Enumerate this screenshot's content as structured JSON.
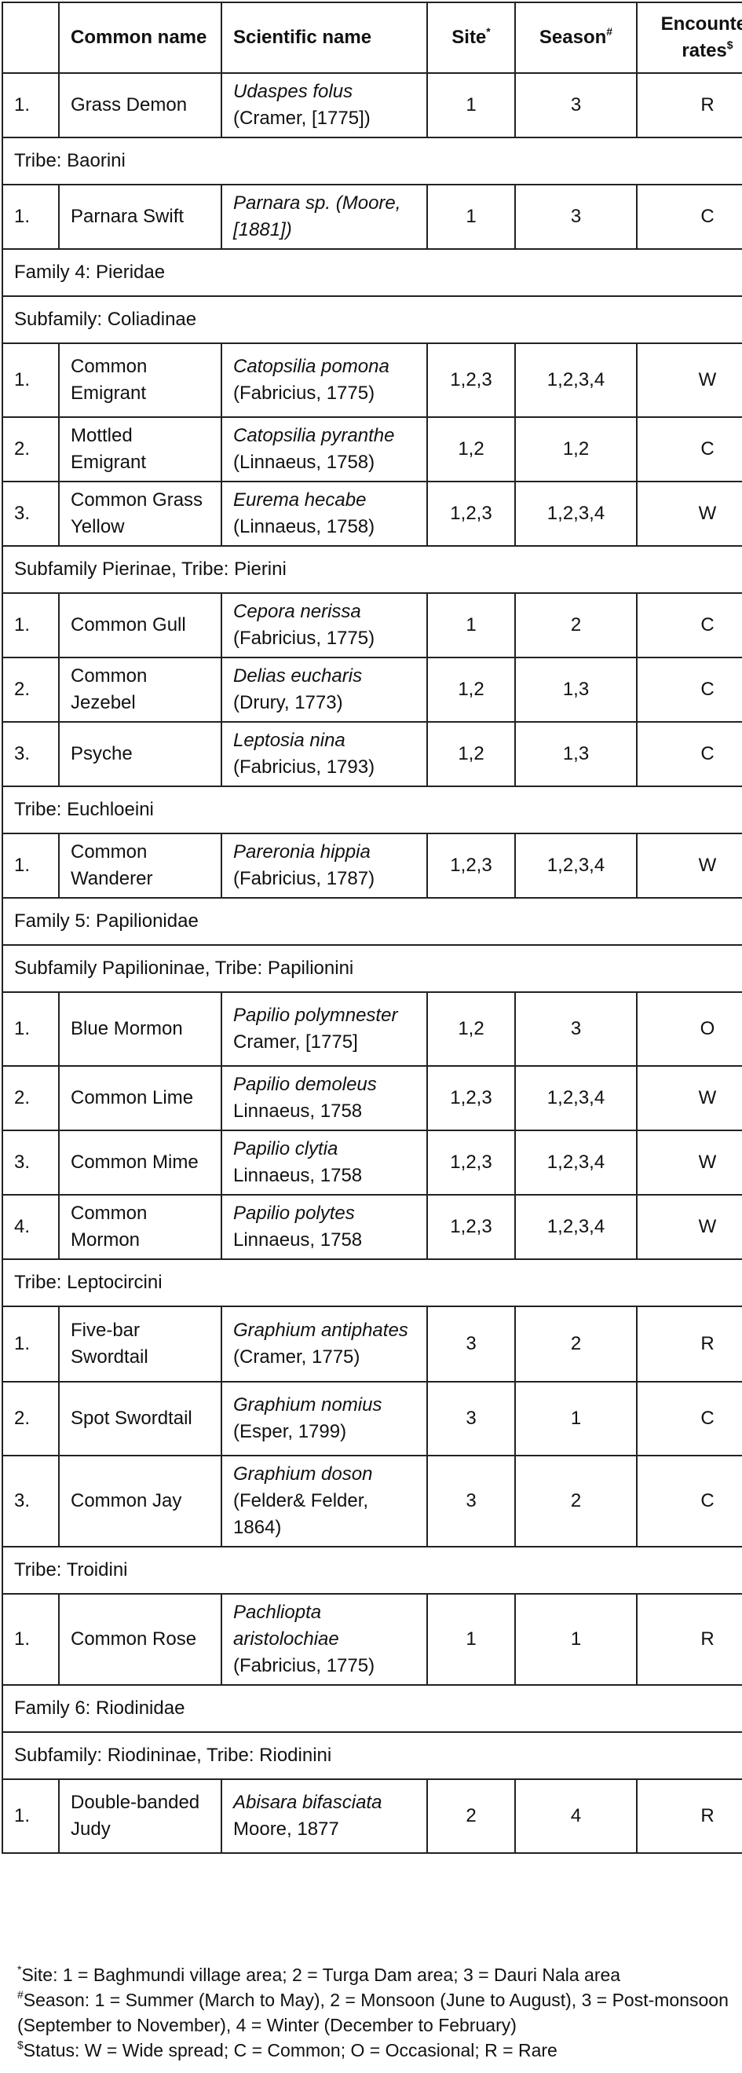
{
  "header": {
    "num": "",
    "common_name": "Common name",
    "scientific_name": "Scientific name",
    "site": "Site",
    "site_mark": "*",
    "season": "Season",
    "season_mark": "#",
    "encounter_rates": "Encounter rates",
    "encounter_mark": "$"
  },
  "rows": [
    {
      "type": "species",
      "num": "1.",
      "common": "Grass Demon",
      "sci_italic": "Udaspes folus",
      "sci_author": "(Cramer, [1775])",
      "site": "1",
      "season": "3",
      "rate": "R"
    },
    {
      "type": "group",
      "label": "Tribe: Baorini"
    },
    {
      "type": "species",
      "num": "1.",
      "common": "Parnara Swift",
      "sci_italic": "Parnara sp. (Moore, [1881])",
      "sci_author": "",
      "site": "1",
      "season": "3",
      "rate": "C"
    },
    {
      "type": "group",
      "label": "Family 4: Pieridae"
    },
    {
      "type": "group",
      "label": "Subfamily: Coliadinae"
    },
    {
      "type": "species",
      "num": "1.",
      "common": "Common Emigrant",
      "sci_italic": "Catopsilia pomona",
      "sci_author": "(Fabricius, 1775)",
      "site": "1,2,3",
      "season": "1,2,3,4",
      "rate": "W"
    },
    {
      "type": "species",
      "num": "2.",
      "common": "Mottled Emigrant",
      "sci_italic": "Catopsilia pyranthe",
      "sci_author": "(Linnaeus, 1758)",
      "site": "1,2",
      "season": "1,2",
      "rate": "C"
    },
    {
      "type": "species",
      "num": "3.",
      "common": "Common Grass Yellow",
      "sci_italic": "Eurema hecabe",
      "sci_author": "(Linnaeus, 1758)",
      "site": "1,2,3",
      "season": "1,2,3,4",
      "rate": "W"
    },
    {
      "type": "group",
      "label": "Subfamily Pierinae, Tribe: Pierini"
    },
    {
      "type": "species",
      "num": "1.",
      "common": "Common Gull",
      "sci_italic": "Cepora nerissa",
      "sci_author": "(Fabricius, 1775)",
      "site": "1",
      "season": "2",
      "rate": "C"
    },
    {
      "type": "species",
      "num": "2.",
      "common": "Common Jezebel",
      "sci_italic": "Delias eucharis",
      "sci_author": "(Drury, 1773)",
      "site": "1,2",
      "season": "1,3",
      "rate": "C"
    },
    {
      "type": "species",
      "num": "3.",
      "common": "Psyche",
      "sci_italic": "Leptosia nina",
      "sci_author": "(Fabricius, 1793)",
      "site": "1,2",
      "season": "1,3",
      "rate": "C"
    },
    {
      "type": "group",
      "label": "Tribe: Euchloeini"
    },
    {
      "type": "species",
      "num": "1.",
      "common": "Common Wanderer",
      "sci_italic": "Pareronia hippia",
      "sci_author": "(Fabricius, 1787)",
      "site": "1,2,3",
      "season": "1,2,3,4",
      "rate": "W"
    },
    {
      "type": "group",
      "label": "Family 5: Papilionidae"
    },
    {
      "type": "group",
      "label": "Subfamily Papilioninae, Tribe: Papilionini"
    },
    {
      "type": "species",
      "num": "1.",
      "common": "Blue Mormon",
      "sci_italic": "Papilio polymnester",
      "sci_author": "Cramer, [1775]",
      "site": "1,2",
      "season": "3",
      "rate": "O"
    },
    {
      "type": "species",
      "num": "2.",
      "common": "Common Lime",
      "sci_italic": "Papilio demoleus",
      "sci_author": "Linnaeus, 1758",
      "site": "1,2,3",
      "season": "1,2,3,4",
      "rate": "W"
    },
    {
      "type": "species",
      "num": "3.",
      "common": "Common Mime",
      "sci_italic": "Papilio clytia",
      "sci_author": "Linnaeus, 1758",
      "site": "1,2,3",
      "season": "1,2,3,4",
      "rate": "W"
    },
    {
      "type": "species",
      "num": "4.",
      "common": "Common Mormon",
      "sci_italic": "Papilio polytes",
      "sci_author": "Linnaeus, 1758",
      "site": "1,2,3",
      "season": "1,2,3,4",
      "rate": "W"
    },
    {
      "type": "group",
      "label": "Tribe: Leptocircini"
    },
    {
      "type": "species",
      "num": "1.",
      "common": "Five-bar Swordtail",
      "sci_italic": "Graphium antiphates",
      "sci_author": "(Cramer, 1775)",
      "site": "3",
      "season": "2",
      "rate": "R"
    },
    {
      "type": "species",
      "num": "2.",
      "common": "Spot Swordtail",
      "sci_italic": "Graphium nomius",
      "sci_author": "(Esper, 1799)",
      "site": "3",
      "season": "1",
      "rate": "C"
    },
    {
      "type": "species",
      "num": "3.",
      "common": "Common Jay",
      "sci_italic": "Graphium doson",
      "sci_author": "(Felder& Felder, 1864)",
      "site": "3",
      "season": "2",
      "rate": "C"
    },
    {
      "type": "group",
      "label": "Tribe: Troidini"
    },
    {
      "type": "species",
      "num": "1.",
      "common": "Common Rose",
      "sci_italic": "Pachliopta aristolochiae",
      "sci_author": "(Fabricius, 1775)",
      "site": "1",
      "season": "1",
      "rate": "R"
    },
    {
      "type": "group",
      "label": "Family 6: Riodinidae"
    },
    {
      "type": "group",
      "label": "Subfamily: Riodininae, Tribe: Riodinini"
    },
    {
      "type": "species",
      "num": "1.",
      "common": "Double-banded Judy",
      "sci_italic": "Abisara bifasciata",
      "sci_author": "Moore, 1877",
      "site": "2",
      "season": "4",
      "rate": "R"
    }
  ],
  "footnotes": [
    {
      "mark": "*",
      "text": "Site: 1 = Baghmundi village area; 2 = Turga Dam area; 3 = Dauri Nala area"
    },
    {
      "mark": "#",
      "text": "Season: 1 = Summer (March to May), 2 = Monsoon (June to August), 3 = Post-monsoon (September to November), 4 = Winter (December to February)"
    },
    {
      "mark": "$",
      "text": "Status: W = Wide spread; C = Common; O = Occasional; R = Rare"
    }
  ]
}
